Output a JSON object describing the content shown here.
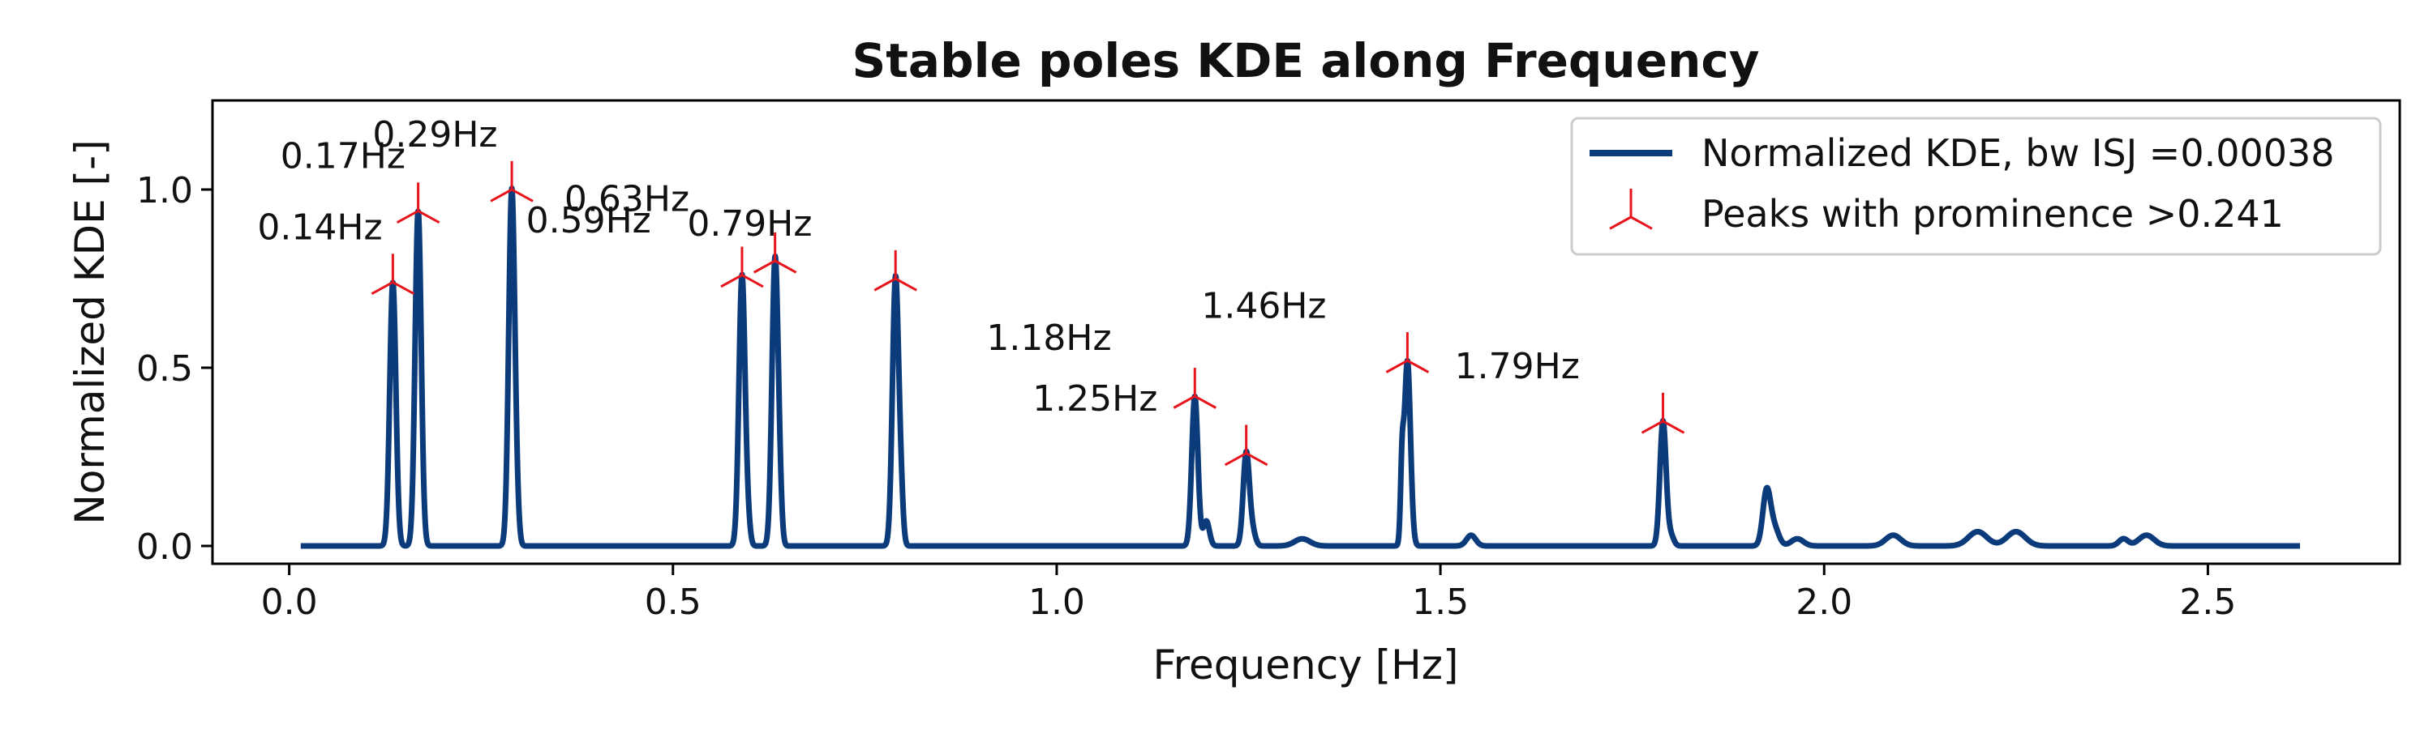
{
  "chart_data": {
    "type": "line",
    "title": "Stable poles KDE along Frequency",
    "xlabel": "Frequency [Hz]",
    "ylabel": "Normalized KDE [-]",
    "xlim": [
      -0.1,
      2.75
    ],
    "ylim": [
      -0.05,
      1.25
    ],
    "xticks": [
      {
        "value": 0.0,
        "label": "0.0"
      },
      {
        "value": 0.5,
        "label": "0.5"
      },
      {
        "value": 1.0,
        "label": "1.0"
      },
      {
        "value": 1.5,
        "label": "1.5"
      },
      {
        "value": 2.0,
        "label": "2.0"
      },
      {
        "value": 2.5,
        "label": "2.5"
      }
    ],
    "yticks": [
      {
        "value": 0.0,
        "label": "0.0"
      },
      {
        "value": 0.5,
        "label": "0.5"
      },
      {
        "value": 1.0,
        "label": "1.0"
      }
    ],
    "grid": false,
    "legend_position": "top-right",
    "colors": {
      "kde_line": "#0b3b7a",
      "peak_marker": "#e8141c"
    },
    "series": [
      {
        "name": "Normalized KDE, bw ISJ =0.00038",
        "x_range": [
          0.015,
          2.62
        ],
        "baseline": 0.0,
        "features": [
          {
            "x": 0.135,
            "y": 0.74,
            "w": 0.004
          },
          {
            "x": 0.168,
            "y": 0.94,
            "w": 0.004
          },
          {
            "x": 0.29,
            "y": 1.0,
            "w": 0.004
          },
          {
            "x": 0.297,
            "y": 0.05,
            "w": 0.003
          },
          {
            "x": 0.59,
            "y": 0.76,
            "w": 0.004
          },
          {
            "x": 0.598,
            "y": 0.05,
            "w": 0.003
          },
          {
            "x": 0.633,
            "y": 0.8,
            "w": 0.004
          },
          {
            "x": 0.639,
            "y": 0.09,
            "w": 0.003
          },
          {
            "x": 0.79,
            "y": 0.75,
            "w": 0.004
          },
          {
            "x": 0.797,
            "y": 0.12,
            "w": 0.003
          },
          {
            "x": 1.18,
            "y": 0.42,
            "w": 0.004
          },
          {
            "x": 1.195,
            "y": 0.07,
            "w": 0.004
          },
          {
            "x": 1.247,
            "y": 0.26,
            "w": 0.004
          },
          {
            "x": 1.255,
            "y": 0.04,
            "w": 0.004
          },
          {
            "x": 1.32,
            "y": 0.02,
            "w": 0.01
          },
          {
            "x": 1.45,
            "y": 0.19,
            "w": 0.002
          },
          {
            "x": 1.457,
            "y": 0.52,
            "w": 0.004
          },
          {
            "x": 1.54,
            "y": 0.03,
            "w": 0.006
          },
          {
            "x": 1.79,
            "y": 0.35,
            "w": 0.004
          },
          {
            "x": 1.8,
            "y": 0.03,
            "w": 0.004
          },
          {
            "x": 1.925,
            "y": 0.15,
            "w": 0.005
          },
          {
            "x": 1.935,
            "y": 0.05,
            "w": 0.006
          },
          {
            "x": 1.965,
            "y": 0.02,
            "w": 0.008
          },
          {
            "x": 2.09,
            "y": 0.03,
            "w": 0.01
          },
          {
            "x": 2.2,
            "y": 0.04,
            "w": 0.012
          },
          {
            "x": 2.25,
            "y": 0.04,
            "w": 0.012
          },
          {
            "x": 2.39,
            "y": 0.02,
            "w": 0.006
          },
          {
            "x": 2.42,
            "y": 0.03,
            "w": 0.01
          }
        ]
      }
    ],
    "peaks": {
      "name": "Peaks with prominence >0.241",
      "points": [
        {
          "x": 0.135,
          "y": 0.74,
          "label": "0.14Hz",
          "label_x": 0.04,
          "label_y": 0.86
        },
        {
          "x": 0.168,
          "y": 0.94,
          "label": "0.17Hz",
          "label_x": 0.07,
          "label_y": 1.06
        },
        {
          "x": 0.29,
          "y": 1.0,
          "label": "0.29Hz",
          "label_x": 0.19,
          "label_y": 1.12
        },
        {
          "x": 0.59,
          "y": 0.76,
          "label": "0.59Hz",
          "label_x": 0.39,
          "label_y": 0.88
        },
        {
          "x": 0.633,
          "y": 0.8,
          "label": "0.63Hz",
          "label_x": 0.44,
          "label_y": 0.94
        },
        {
          "x": 0.79,
          "y": 0.75,
          "label": "0.79Hz",
          "label_x": 0.6,
          "label_y": 0.87
        },
        {
          "x": 1.18,
          "y": 0.42,
          "label": "1.18Hz",
          "label_x": 0.99,
          "label_y": 0.55
        },
        {
          "x": 1.247,
          "y": 0.26,
          "label": "1.25Hz",
          "label_x": 1.05,
          "label_y": 0.38
        },
        {
          "x": 1.457,
          "y": 0.52,
          "label": "1.46Hz",
          "label_x": 1.27,
          "label_y": 0.64
        },
        {
          "x": 1.79,
          "y": 0.35,
          "label": "1.79Hz",
          "label_x": 1.6,
          "label_y": 0.47
        }
      ]
    }
  }
}
